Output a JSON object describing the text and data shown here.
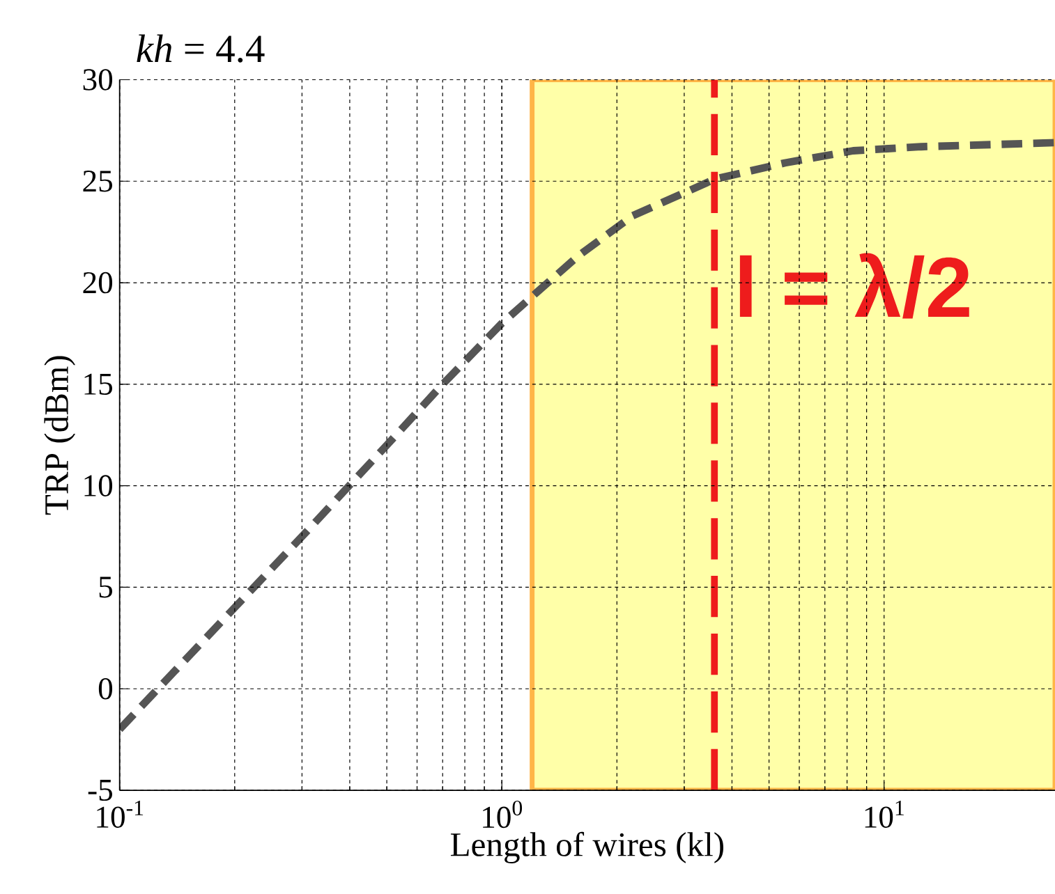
{
  "chart_data": {
    "type": "line",
    "title": "*kh* = 4.4",
    "xlabel": "Length of wires (kl)",
    "ylabel": "TRP (dBm)",
    "x": [
      0.1,
      0.2,
      0.3,
      0.5,
      0.7,
      1.0,
      1.23,
      1.58,
      2.2,
      3.06,
      3.6,
      5.5,
      8.3,
      12.5,
      19,
      28
    ],
    "series": [
      {
        "color": "#555555",
        "values": [
          -2,
          4,
          7.5,
          12,
          15,
          18,
          19.5,
          21.3,
          23.3,
          24.5,
          25.1,
          25.9,
          26.5,
          26.7,
          26.8,
          26.9
        ]
      }
    ],
    "log": "x",
    "xlim": [
      0.1,
      28
    ],
    "ylim": [
      -5,
      30
    ],
    "xticks": [
      {
        "value": 0.1,
        "label": "10$^{-1}$"
      },
      {
        "value": 1,
        "label": "10$^{0}$"
      },
      {
        "value": 10,
        "label": "10$^{1}$"
      }
    ],
    "yticks": [
      -5,
      0,
      5,
      10,
      15,
      20,
      25,
      30
    ],
    "grid": true,
    "line_style": "dashed",
    "ref_lines": [
      {
        "axis": "x",
        "value": 3.6,
        "label": "l = λ/2",
        "color": "#ee1c1c",
        "line_style": "dashed"
      }
    ],
    "bands": [
      {
        "axis": "x",
        "from": 1.2,
        "to": 28,
        "color": "#ffffa8"
      }
    ]
  }
}
